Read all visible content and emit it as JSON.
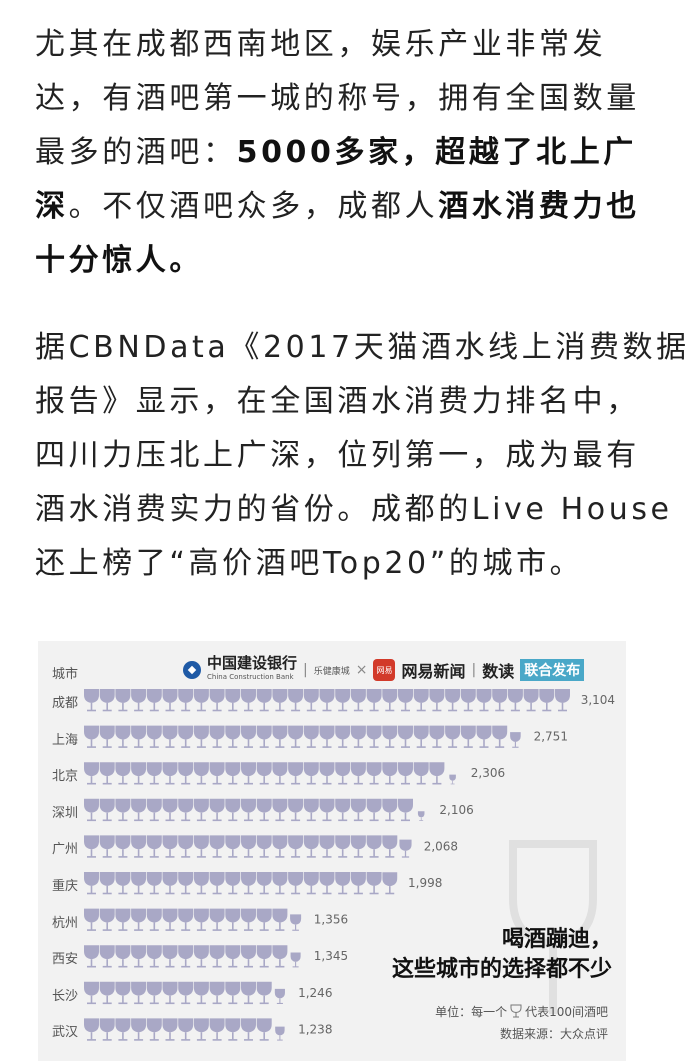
{
  "article": {
    "paragraphs": [
      [
        [
          {
            "text": "尤其在成都西南地区，娱乐产业非常发",
            "bold": false
          }
        ],
        [
          {
            "text": "达，有酒吧第一城的称号，拥有全国数量",
            "bold": false
          }
        ],
        [
          {
            "text": "最多的酒吧：",
            "bold": false
          },
          {
            "text": "5000多家，超越了北上广",
            "bold": true
          }
        ],
        [
          {
            "text": "深",
            "bold": true
          },
          {
            "text": "。不仅酒吧众多，成都人",
            "bold": false
          },
          {
            "text": "酒水消费力也",
            "bold": true
          }
        ],
        [
          {
            "text": "十分惊人。",
            "bold": true
          }
        ]
      ],
      [
        [
          {
            "text": "据CBNData《2017天猫酒水线上消费数据",
            "bold": false
          }
        ],
        [
          {
            "text": "报告》显示，在全国酒水消费力排名中，",
            "bold": false
          }
        ],
        [
          {
            "text": "四川力压北上广深，位列第一，成为最有",
            "bold": false
          }
        ],
        [
          {
            "text": "酒水消费实力的省份。成都的Live House",
            "bold": false
          }
        ],
        [
          {
            "text": "还上榜了“高价酒吧Top20”的城市。",
            "bold": false
          }
        ]
      ]
    ]
  },
  "infographic": {
    "logos": {
      "ccb_name": "中国建设银行",
      "ccb_en": "China Construction Bank",
      "ccb_sub": "乐健康城",
      "times": "×",
      "wy_icon": "网易",
      "wy_name": "网易新闻",
      "sep": "|",
      "shudu": "数读",
      "badge": "联合发布"
    },
    "headline_1": "喝酒蹦迪，",
    "headline_2": "这些城市的选择都不少",
    "unit_prefix": "单位：每一个",
    "unit_icon": "wine-glass-icon",
    "unit_suffix": "代表100间酒吧",
    "source": "数据来源：大众点评",
    "glass_color": "#a9a8c6"
  },
  "chart_data": {
    "type": "bar",
    "xlabel": "城市",
    "categories": [
      "成都",
      "上海",
      "北京",
      "深圳",
      "广州",
      "重庆",
      "杭州",
      "西安",
      "长沙",
      "武汉"
    ],
    "values": [
      3104,
      2751,
      2306,
      2106,
      2068,
      1998,
      1356,
      1345,
      1246,
      1238
    ],
    "value_labels": [
      "3,104",
      "2,751",
      "2,306",
      "2,106",
      "2,068",
      "1,998",
      "1,356",
      "1,345",
      "1,246",
      "1,238"
    ],
    "unit_per_icon": 100
  }
}
